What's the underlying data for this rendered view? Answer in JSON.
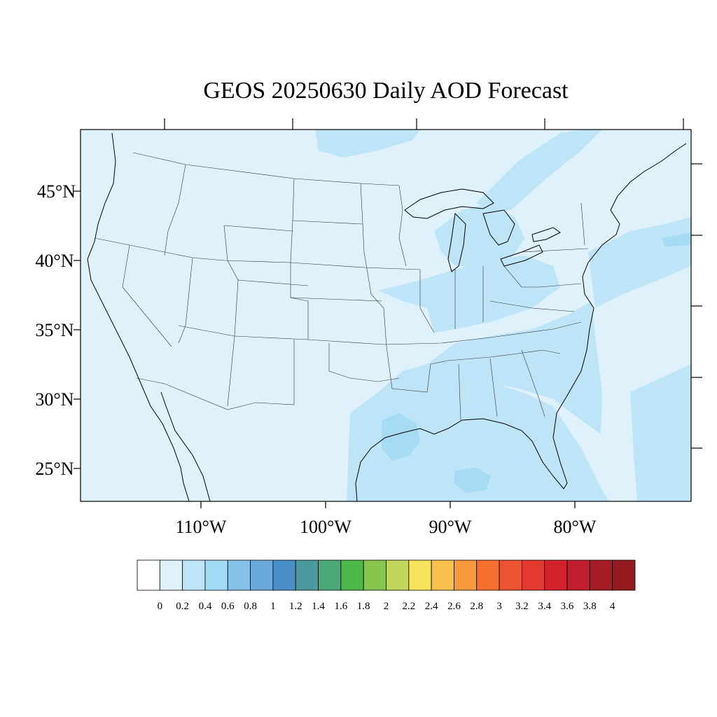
{
  "title": "GEOS 20250630 Daily AOD Forecast",
  "map": {
    "projection": "Lambert Conformal (CONUS)",
    "variable": "Daily AOD",
    "lat_labels": [
      "45°N",
      "40°N",
      "35°N",
      "30°N",
      "25°N"
    ],
    "lon_labels": [
      "110°W",
      "100°W",
      "90°W",
      "80°W"
    ],
    "background_color": "#dff2fb",
    "enhanced_regions": [
      {
        "name": "gulf-coast",
        "level": "0.2-0.4",
        "color": "#bee5f7"
      },
      {
        "name": "ohio-valley",
        "level": "0.2-0.4",
        "color": "#bee5f7"
      },
      {
        "name": "great-lakes",
        "level": "0.2-0.4",
        "color": "#bee5f7"
      },
      {
        "name": "southeast",
        "level": "0.2-0.4",
        "color": "#bee5f7"
      },
      {
        "name": "atlantic-plume",
        "level": "0.2-0.4",
        "color": "#bee5f7"
      },
      {
        "name": "canada-northeast",
        "level": "0.2-0.4",
        "color": "#bee5f7"
      },
      {
        "name": "louisiana-core",
        "level": "0.4-0.6",
        "color": "#a5dbf3"
      }
    ]
  },
  "colorbar": {
    "labels": [
      "0",
      "0.2",
      "0.4",
      "0.6",
      "0.8",
      "1",
      "1.2",
      "1.4",
      "1.6",
      "1.8",
      "2",
      "2.2",
      "2.4",
      "2.6",
      "2.8",
      "3",
      "3.2",
      "3.4",
      "3.6",
      "3.8",
      "4"
    ],
    "colors": [
      "#ffffff",
      "#dff2fb",
      "#bde5f8",
      "#a2d9f4",
      "#86c2e7",
      "#6aaada",
      "#4a8ec9",
      "#4a9aa0",
      "#4aa876",
      "#4db74a",
      "#87c54f",
      "#c2d65b",
      "#f7e45c",
      "#f8c14d",
      "#f79a3d",
      "#f56f2e",
      "#ec5330",
      "#e23a2f",
      "#d2232d",
      "#c01e2c",
      "#a51c26",
      "#941a20"
    ]
  }
}
